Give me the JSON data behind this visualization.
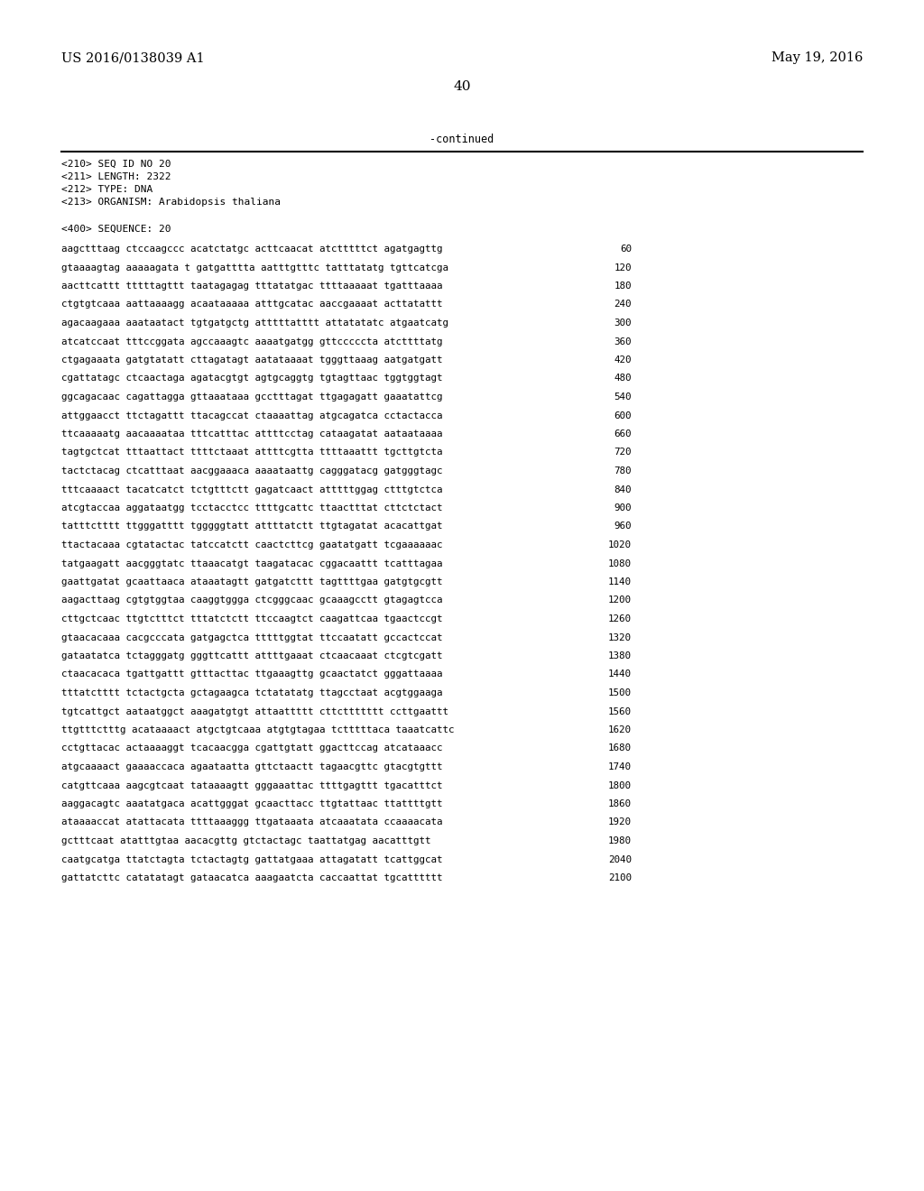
{
  "top_left": "US 2016/0138039 A1",
  "top_right": "May 19, 2016",
  "page_number": "40",
  "continued_text": "-continued",
  "header_lines": [
    "<210> SEQ ID NO 20",
    "<211> LENGTH: 2322",
    "<212> TYPE: DNA",
    "<213> ORGANISM: Arabidopsis thaliana"
  ],
  "sequence_header": "<400> SEQUENCE: 20",
  "sequence_lines": [
    [
      "aagctttaag ctccaagccc acatctatgc acttcaacat atctttttct agatgagttg",
      "60"
    ],
    [
      "gtaaaagtag aaaaagata t gatgatttta aatttgtttc tatttatatg tgttcatcga",
      "120"
    ],
    [
      "aacttcattt tttttagttt taatagagag tttatatgac ttttaaaaat tgatttaaaa",
      "180"
    ],
    [
      "ctgtgtcaaa aattaaaagg acaataaaaa atttgcatac aaccgaaaat acttatattt",
      "240"
    ],
    [
      "agacaagaaa aaataatact tgtgatgctg atttttatttt attatatatc atgaatcatg",
      "300"
    ],
    [
      "atcatccaat tttccggata agccaaagtc aaaatgatgg gttcccccta atcttttatg",
      "360"
    ],
    [
      "ctgagaaata gatgtatatt cttagatagt aatataaaat tgggttaaag aatgatgatt",
      "420"
    ],
    [
      "cgattatagc ctcaactaga agatacgtgt agtgcaggtg tgtagttaac tggtggtagt",
      "480"
    ],
    [
      "ggcagacaac cagattagga gttaaataaa gcctttagat ttgagagatt gaaatattcg",
      "540"
    ],
    [
      "attggaacct ttctagattt ttacagccat ctaaaattag atgcagatca cctactacca",
      "600"
    ],
    [
      "ttcaaaaatg aacaaaataa tttcatttac attttcctag cataagatat aataataaaa",
      "660"
    ],
    [
      "tagtgctcat tttaattact ttttctaaat attttcgtta ttttaaattt tgcttgtcta",
      "720"
    ],
    [
      "tactctacag ctcatttaat aacggaaaca aaaataattg cagggatacg gatgggtagc",
      "780"
    ],
    [
      "tttcaaaact tacatcatct tctgtttctt gagatcaact atttttggag ctttgtctca",
      "840"
    ],
    [
      "atcgtaccaa aggataatgg tcctacctcc ttttgcattc ttaactttat cttctctact",
      "900"
    ],
    [
      "tatttctttt ttgggatttt tgggggtatt attttatctt ttgtagatat acacattgat",
      "960"
    ],
    [
      "ttactacaaa cgtatactac tatccatctt caactcttcg gaatatgatt tcgaaaaaac",
      "1020"
    ],
    [
      "tatgaagatt aacgggtatc ttaaacatgt taagatacac cggacaattt tcatttagaa",
      "1080"
    ],
    [
      "gaattgatat gcaattaaca ataaatagtt gatgatcttt tagttttgaa gatgtgcgtt",
      "1140"
    ],
    [
      "aagacttaag cgtgtggtaa caaggtggga ctcgggcaac gcaaagcctt gtagagtcca",
      "1200"
    ],
    [
      "cttgctcaac ttgtctttct tttatctctt ttccaagtct caagattcaa tgaactccgt",
      "1260"
    ],
    [
      "gtaacacaaa cacgcccata gatgagctca tttttggtat ttccaatatt gccactccat",
      "1320"
    ],
    [
      "gataatatca tctagggatg gggttcattt attttgaaat ctcaacaaat ctcgtcgatt",
      "1380"
    ],
    [
      "ctaacacaca tgattgattt gtttacttac ttgaaagttg gcaactatct gggattaaaa",
      "1440"
    ],
    [
      "tttatctttt tctactgcta gctagaagca tctatatatg ttagcctaat acgtggaaga",
      "1500"
    ],
    [
      "tgtcattgct aataatggct aaagatgtgt attaattttt cttcttttttt ccttgaattt",
      "1560"
    ],
    [
      "ttgtttctttg acataaaact atgctgtcaaa atgtgtagaa tctttttaca taaatcattc",
      "1620"
    ],
    [
      "cctgttacac actaaaaggt tcacaacgga cgattgtatt ggacttccag atcataaacc",
      "1680"
    ],
    [
      "atgcaaaact gaaaaccaca agaataatta gttctaactt tagaacgttc gtacgtgttt",
      "1740"
    ],
    [
      "catgttcaaa aagcgtcaat tataaaagtt gggaaattac ttttgagttt tgacatttct",
      "1800"
    ],
    [
      "aaggacagtc aaatatgaca acattgggat gcaacttacc ttgtattaac ttattttgtt",
      "1860"
    ],
    [
      "ataaaaccat atattacata ttttaaaggg ttgataaata atcaaatata ccaaaacata",
      "1920"
    ],
    [
      "gctttcaat atatttgtaa aacacgttg gtctactagc taattatgag aacatttgtt",
      "1980"
    ],
    [
      "caatgcatga ttatctagta tctactagtg gattatgaaa attagatatt tcattggcat",
      "2040"
    ],
    [
      "gattatcttc catatatagt gataacatca aaagaatcta caccaattat tgcatttttt",
      "2100"
    ]
  ],
  "bg_color": "#ffffff",
  "text_color": "#000000",
  "mono_font": "DejaVu Sans Mono",
  "serif_font": "DejaVu Serif",
  "font_size_header_meta": 8.0,
  "font_size_seq": 7.8,
  "font_size_top": 10.5,
  "font_size_page": 11.0,
  "font_size_continued": 8.5
}
